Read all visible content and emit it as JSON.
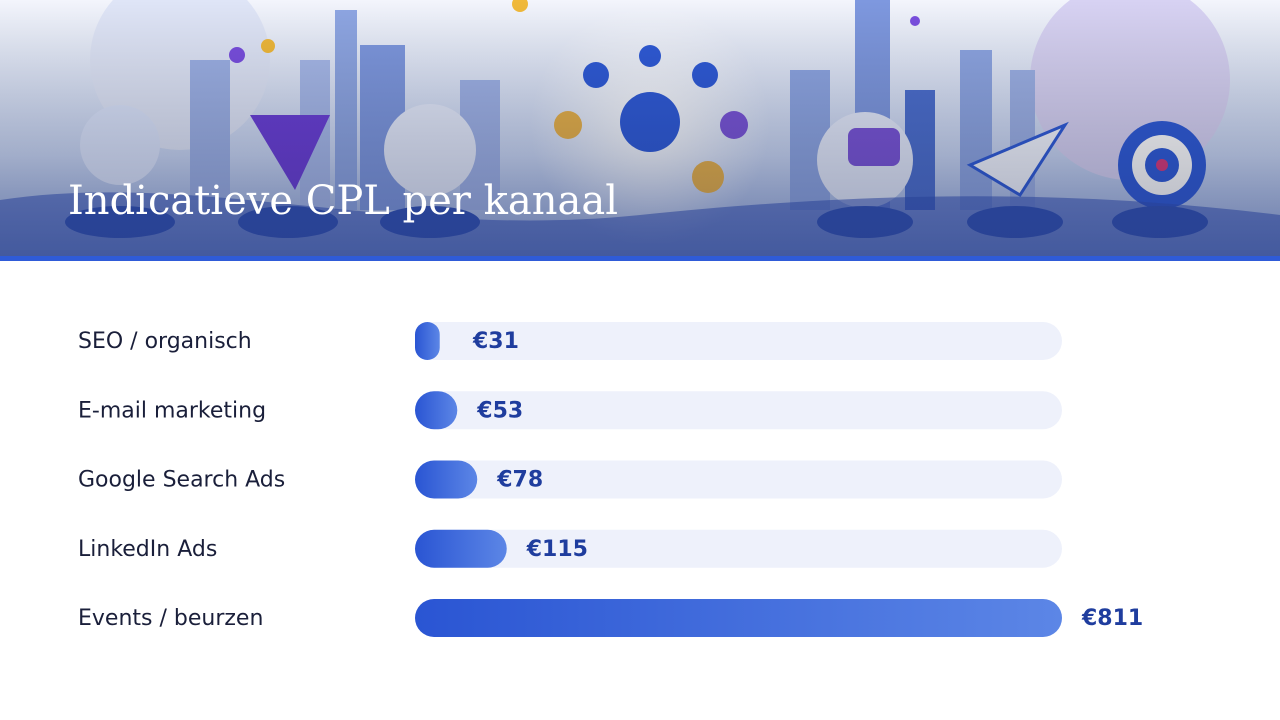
{
  "chart_data": {
    "type": "bar",
    "orientation": "horizontal",
    "title": "Indicatieve CPL per kanaal",
    "categories": [
      "SEO / organisch",
      "E-mail marketing",
      "Google Search Ads",
      "LinkedIn Ads",
      "Events / beurzen"
    ],
    "values": [
      31,
      53,
      78,
      115,
      811
    ],
    "value_labels": [
      "€31",
      "€53",
      "€78",
      "€115",
      "€811"
    ],
    "color": "#2f5bd8"
  }
}
